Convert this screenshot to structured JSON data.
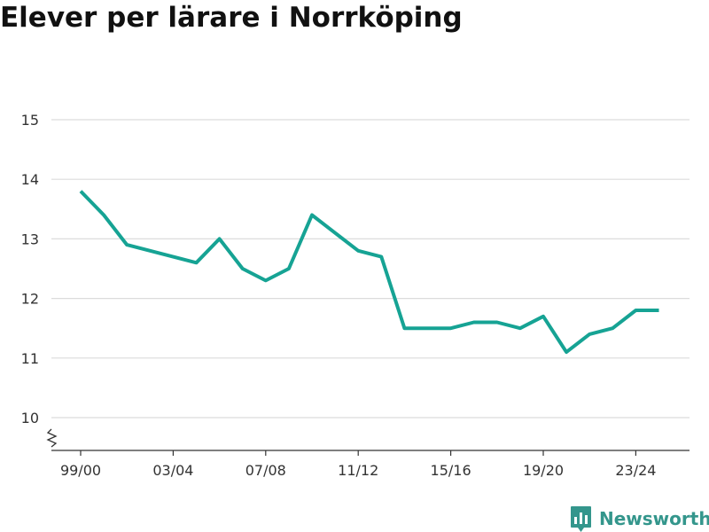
{
  "title": "Elever per lärare i Norrköping",
  "brand": {
    "name": "Newsworthy",
    "logo_icon": "bar-chart-speech-bubble-icon",
    "color": "#34968c"
  },
  "chart_data": {
    "type": "line",
    "title": "Elever per lärare i Norrköping",
    "xlabel": "",
    "ylabel": "",
    "ylim": [
      10,
      15
    ],
    "yticks": [
      10,
      11,
      12,
      13,
      14,
      15
    ],
    "y_axis_break": true,
    "grid": true,
    "legend": "none",
    "x_tick_labels": [
      "99/00",
      "03/04",
      "07/08",
      "11/12",
      "15/16",
      "19/20",
      "23/24"
    ],
    "categories": [
      "99/00",
      "00/01",
      "01/02",
      "02/03",
      "03/04",
      "04/05",
      "05/06",
      "06/07",
      "07/08",
      "08/09",
      "09/10",
      "10/11",
      "11/12",
      "12/13",
      "13/14",
      "14/15",
      "15/16",
      "16/17",
      "17/18",
      "18/19",
      "19/20",
      "20/21",
      "21/22",
      "22/23",
      "23/24",
      "24/25"
    ],
    "series": [
      {
        "color": "#16a394",
        "values": [
          13.8,
          13.4,
          12.9,
          12.8,
          12.7,
          12.6,
          13.0,
          12.5,
          12.3,
          12.5,
          13.4,
          13.1,
          12.8,
          12.7,
          11.5,
          11.5,
          11.5,
          11.6,
          11.6,
          11.5,
          11.7,
          11.1,
          11.4,
          11.5,
          11.8,
          11.8
        ]
      }
    ]
  }
}
